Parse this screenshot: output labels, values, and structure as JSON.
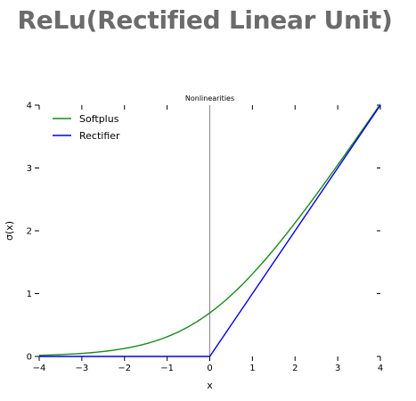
{
  "page": {
    "title": "ReLu(Rectified Linear Unit)"
  },
  "colors": {
    "title_text": "#6b6b6b",
    "softplus": "#1a8a1a",
    "rectifier": "#0000ee",
    "zero_line": "#888888"
  },
  "chart_data": {
    "type": "line",
    "title": "Nonlinearities",
    "xlabel": "x",
    "ylabel": "σ(x)",
    "xlim": [
      -4,
      4
    ],
    "ylim": [
      0,
      4
    ],
    "xticks": [
      -4,
      -3,
      -2,
      -1,
      0,
      1,
      2,
      3,
      4
    ],
    "yticks": [
      0,
      1,
      2,
      3,
      4
    ],
    "xtick_labels": [
      "−4",
      "−3",
      "−2",
      "−1",
      "0",
      "1",
      "2",
      "3",
      "4"
    ],
    "ytick_labels": [
      "0",
      "1",
      "2",
      "3",
      "4"
    ],
    "grid": false,
    "legend_position": "top-left",
    "vertical_reference_line_at_x": 0,
    "x": [
      -4,
      -3.5,
      -3,
      -2.5,
      -2,
      -1.5,
      -1,
      -0.5,
      0,
      0.5,
      1,
      1.5,
      2,
      2.5,
      3,
      3.5,
      4
    ],
    "series": [
      {
        "name": "Softplus",
        "values": [
          0.018,
          0.03,
          0.049,
          0.079,
          0.127,
          0.201,
          0.313,
          0.474,
          0.693,
          0.974,
          1.313,
          1.701,
          2.127,
          2.579,
          3.049,
          3.53,
          4.018
        ]
      },
      {
        "name": "Rectifier",
        "values": [
          0,
          0,
          0,
          0,
          0,
          0,
          0,
          0,
          0,
          0.5,
          1,
          1.5,
          2,
          2.5,
          3,
          3.5,
          4
        ]
      }
    ]
  }
}
